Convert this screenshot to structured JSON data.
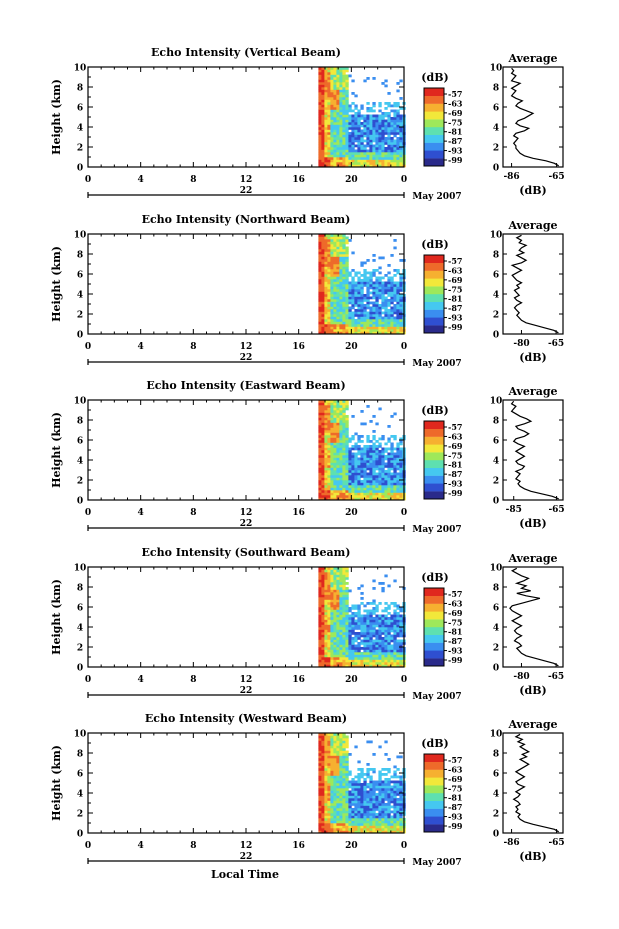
{
  "figure": {
    "xlabel": "Local Time",
    "date_label": "May 2007",
    "day_label": "22",
    "colorbar_unit": "(dB)",
    "colorbar_ticks": [
      "-57",
      "-63",
      "-69",
      "-75",
      "-81",
      "-87",
      "-93",
      "-99"
    ],
    "colors": [
      "#2a2a8a",
      "#2f4fd0",
      "#3a8ef0",
      "#45c8f0",
      "#5ee0b0",
      "#9ee85a",
      "#f2e83a",
      "#f6b030",
      "#ee6a2a",
      "#e0281e"
    ],
    "avg_title": "Average",
    "avg_xlabel": "(dB)"
  },
  "chart_data": [
    {
      "type": "heatmap",
      "title": "Echo Intensity (Vertical Beam)",
      "ylabel": "Height (km)",
      "x_ticks": [
        "0",
        "4",
        "8",
        "12",
        "16",
        "20",
        "0"
      ],
      "y_ticks": [
        "0",
        "2",
        "4",
        "6",
        "8",
        "10"
      ],
      "xlim": [
        0,
        24
      ],
      "ylim": [
        0,
        10
      ],
      "data_start_hour": 17.5,
      "avg_ticks": [
        "-86",
        "-65"
      ],
      "avg_xlim": [
        -90,
        -62
      ],
      "avg_profile": [
        -64,
        -66,
        -70,
        -76,
        -80,
        -82,
        -83,
        -84,
        -84,
        -85,
        -84,
        -83,
        -85,
        -84,
        -80,
        -78,
        -82,
        -84,
        -83,
        -80,
        -78,
        -76,
        -79,
        -82,
        -84,
        -83,
        -81,
        -84,
        -86,
        -85,
        -84,
        -86,
        -84,
        -82,
        -86,
        -85,
        -84,
        -86,
        -85,
        -86
      ]
    },
    {
      "type": "heatmap",
      "title": "Echo Intensity (Northward Beam)",
      "ylabel": "Height (km)",
      "x_ticks": [
        "0",
        "4",
        "8",
        "12",
        "16",
        "20",
        "0"
      ],
      "y_ticks": [
        "0",
        "2",
        "4",
        "6",
        "8",
        "10"
      ],
      "xlim": [
        0,
        24
      ],
      "ylim": [
        0,
        10
      ],
      "data_start_hour": 17.5,
      "avg_ticks": [
        "-80",
        "-65"
      ],
      "avg_xlim": [
        -88,
        -62
      ],
      "avg_profile": [
        -64,
        -66,
        -70,
        -74,
        -78,
        -80,
        -81,
        -82,
        -81,
        -82,
        -83,
        -82,
        -80,
        -82,
        -83,
        -81,
        -82,
        -83,
        -81,
        -82,
        -80,
        -82,
        -83,
        -84,
        -82,
        -80,
        -82,
        -84,
        -80,
        -78,
        -80,
        -82,
        -79,
        -81,
        -80,
        -78,
        -81,
        -80,
        -82,
        -80
      ]
    },
    {
      "type": "heatmap",
      "title": "Echo Intensity (Eastward Beam)",
      "ylabel": "Height (km)",
      "x_ticks": [
        "0",
        "4",
        "8",
        "12",
        "16",
        "20",
        "0"
      ],
      "y_ticks": [
        "0",
        "2",
        "4",
        "6",
        "8",
        "10"
      ],
      "xlim": [
        0,
        24
      ],
      "ylim": [
        0,
        10
      ],
      "data_start_hour": 17.5,
      "avg_ticks": [
        "-85",
        "-65"
      ],
      "avg_xlim": [
        -90,
        -62
      ],
      "avg_profile": [
        -64,
        -67,
        -72,
        -77,
        -80,
        -82,
        -83,
        -82,
        -84,
        -83,
        -82,
        -84,
        -81,
        -80,
        -83,
        -84,
        -82,
        -80,
        -82,
        -84,
        -82,
        -80,
        -83,
        -85,
        -84,
        -80,
        -78,
        -80,
        -83,
        -84,
        -80,
        -77,
        -79,
        -82,
        -84,
        -86,
        -85,
        -84,
        -86,
        -85
      ]
    },
    {
      "type": "heatmap",
      "title": "Echo Intensity (Southward Beam)",
      "ylabel": "Height (km)",
      "x_ticks": [
        "0",
        "4",
        "8",
        "12",
        "16",
        "20",
        "0"
      ],
      "y_ticks": [
        "0",
        "2",
        "4",
        "6",
        "8",
        "10"
      ],
      "xlim": [
        0,
        24
      ],
      "ylim": [
        0,
        10
      ],
      "data_start_hour": 17.5,
      "avg_ticks": [
        "-80",
        "-65"
      ],
      "avg_xlim": [
        -88,
        -62
      ],
      "avg_profile": [
        -64,
        -66,
        -70,
        -74,
        -78,
        -80,
        -81,
        -82,
        -80,
        -81,
        -83,
        -82,
        -80,
        -82,
        -83,
        -82,
        -80,
        -82,
        -84,
        -82,
        -80,
        -82,
        -84,
        -85,
        -84,
        -80,
        -76,
        -72,
        -78,
        -82,
        -76,
        -80,
        -78,
        -82,
        -79,
        -77,
        -80,
        -82,
        -84,
        -82
      ]
    },
    {
      "type": "heatmap",
      "title": "Echo Intensity (Westward Beam)",
      "ylabel": "Height (km)",
      "x_ticks": [
        "0",
        "4",
        "8",
        "12",
        "16",
        "20",
        "0"
      ],
      "y_ticks": [
        "0",
        "2",
        "4",
        "6",
        "8",
        "10"
      ],
      "xlim": [
        0,
        24
      ],
      "ylim": [
        0,
        10
      ],
      "data_start_hour": 17.5,
      "avg_ticks": [
        "-86",
        "-65"
      ],
      "avg_xlim": [
        -90,
        -62
      ],
      "avg_profile": [
        -64,
        -66,
        -71,
        -76,
        -80,
        -82,
        -83,
        -82,
        -84,
        -83,
        -84,
        -82,
        -83,
        -85,
        -83,
        -82,
        -84,
        -82,
        -80,
        -83,
        -84,
        -82,
        -80,
        -82,
        -84,
        -82,
        -80,
        -78,
        -80,
        -82,
        -79,
        -81,
        -78,
        -80,
        -82,
        -80,
        -83,
        -81,
        -84,
        -82
      ]
    }
  ]
}
